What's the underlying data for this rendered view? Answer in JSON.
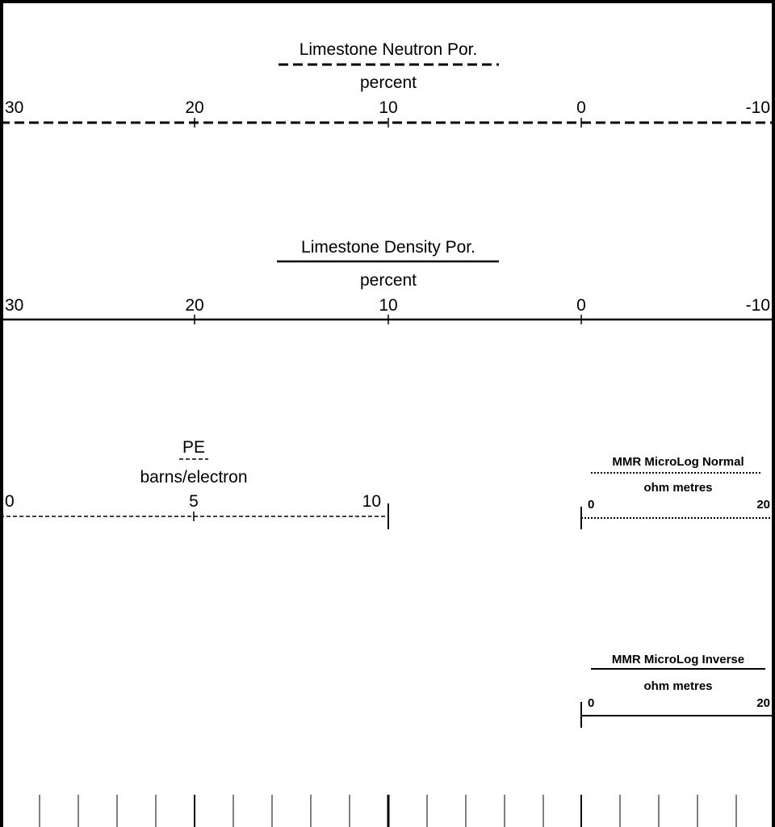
{
  "tracks": [
    {
      "title": "Limestone Neutron Por.",
      "unit": "percent",
      "line_style": "dashed",
      "scale_left": 30,
      "scale_right": -10,
      "ticks": [
        "30",
        "20",
        "10",
        "0",
        "-10"
      ]
    },
    {
      "title": "Limestone Density Por.",
      "unit": "percent",
      "line_style": "solid",
      "scale_left": 30,
      "scale_right": -10,
      "ticks": [
        "30",
        "20",
        "10",
        "0",
        "-10"
      ]
    },
    {
      "title": "PE",
      "unit": "barns/electron",
      "line_style": "fine-dashed",
      "scale_left": 0,
      "scale_right": 10,
      "ticks": [
        "0",
        "5",
        "10"
      ]
    },
    {
      "title": "MMR MicroLog Normal",
      "unit": "ohm metres",
      "line_style": "dotted",
      "scale_left": 0,
      "scale_right": 20,
      "ticks": [
        "0",
        "20"
      ]
    },
    {
      "title": "MMR MicroLog Inverse",
      "unit": "ohm metres",
      "line_style": "solid",
      "scale_left": 0,
      "scale_right": 20,
      "ticks": [
        "0",
        "20"
      ]
    }
  ],
  "colors": {
    "ink": "#000000",
    "background": "#ffffff"
  }
}
